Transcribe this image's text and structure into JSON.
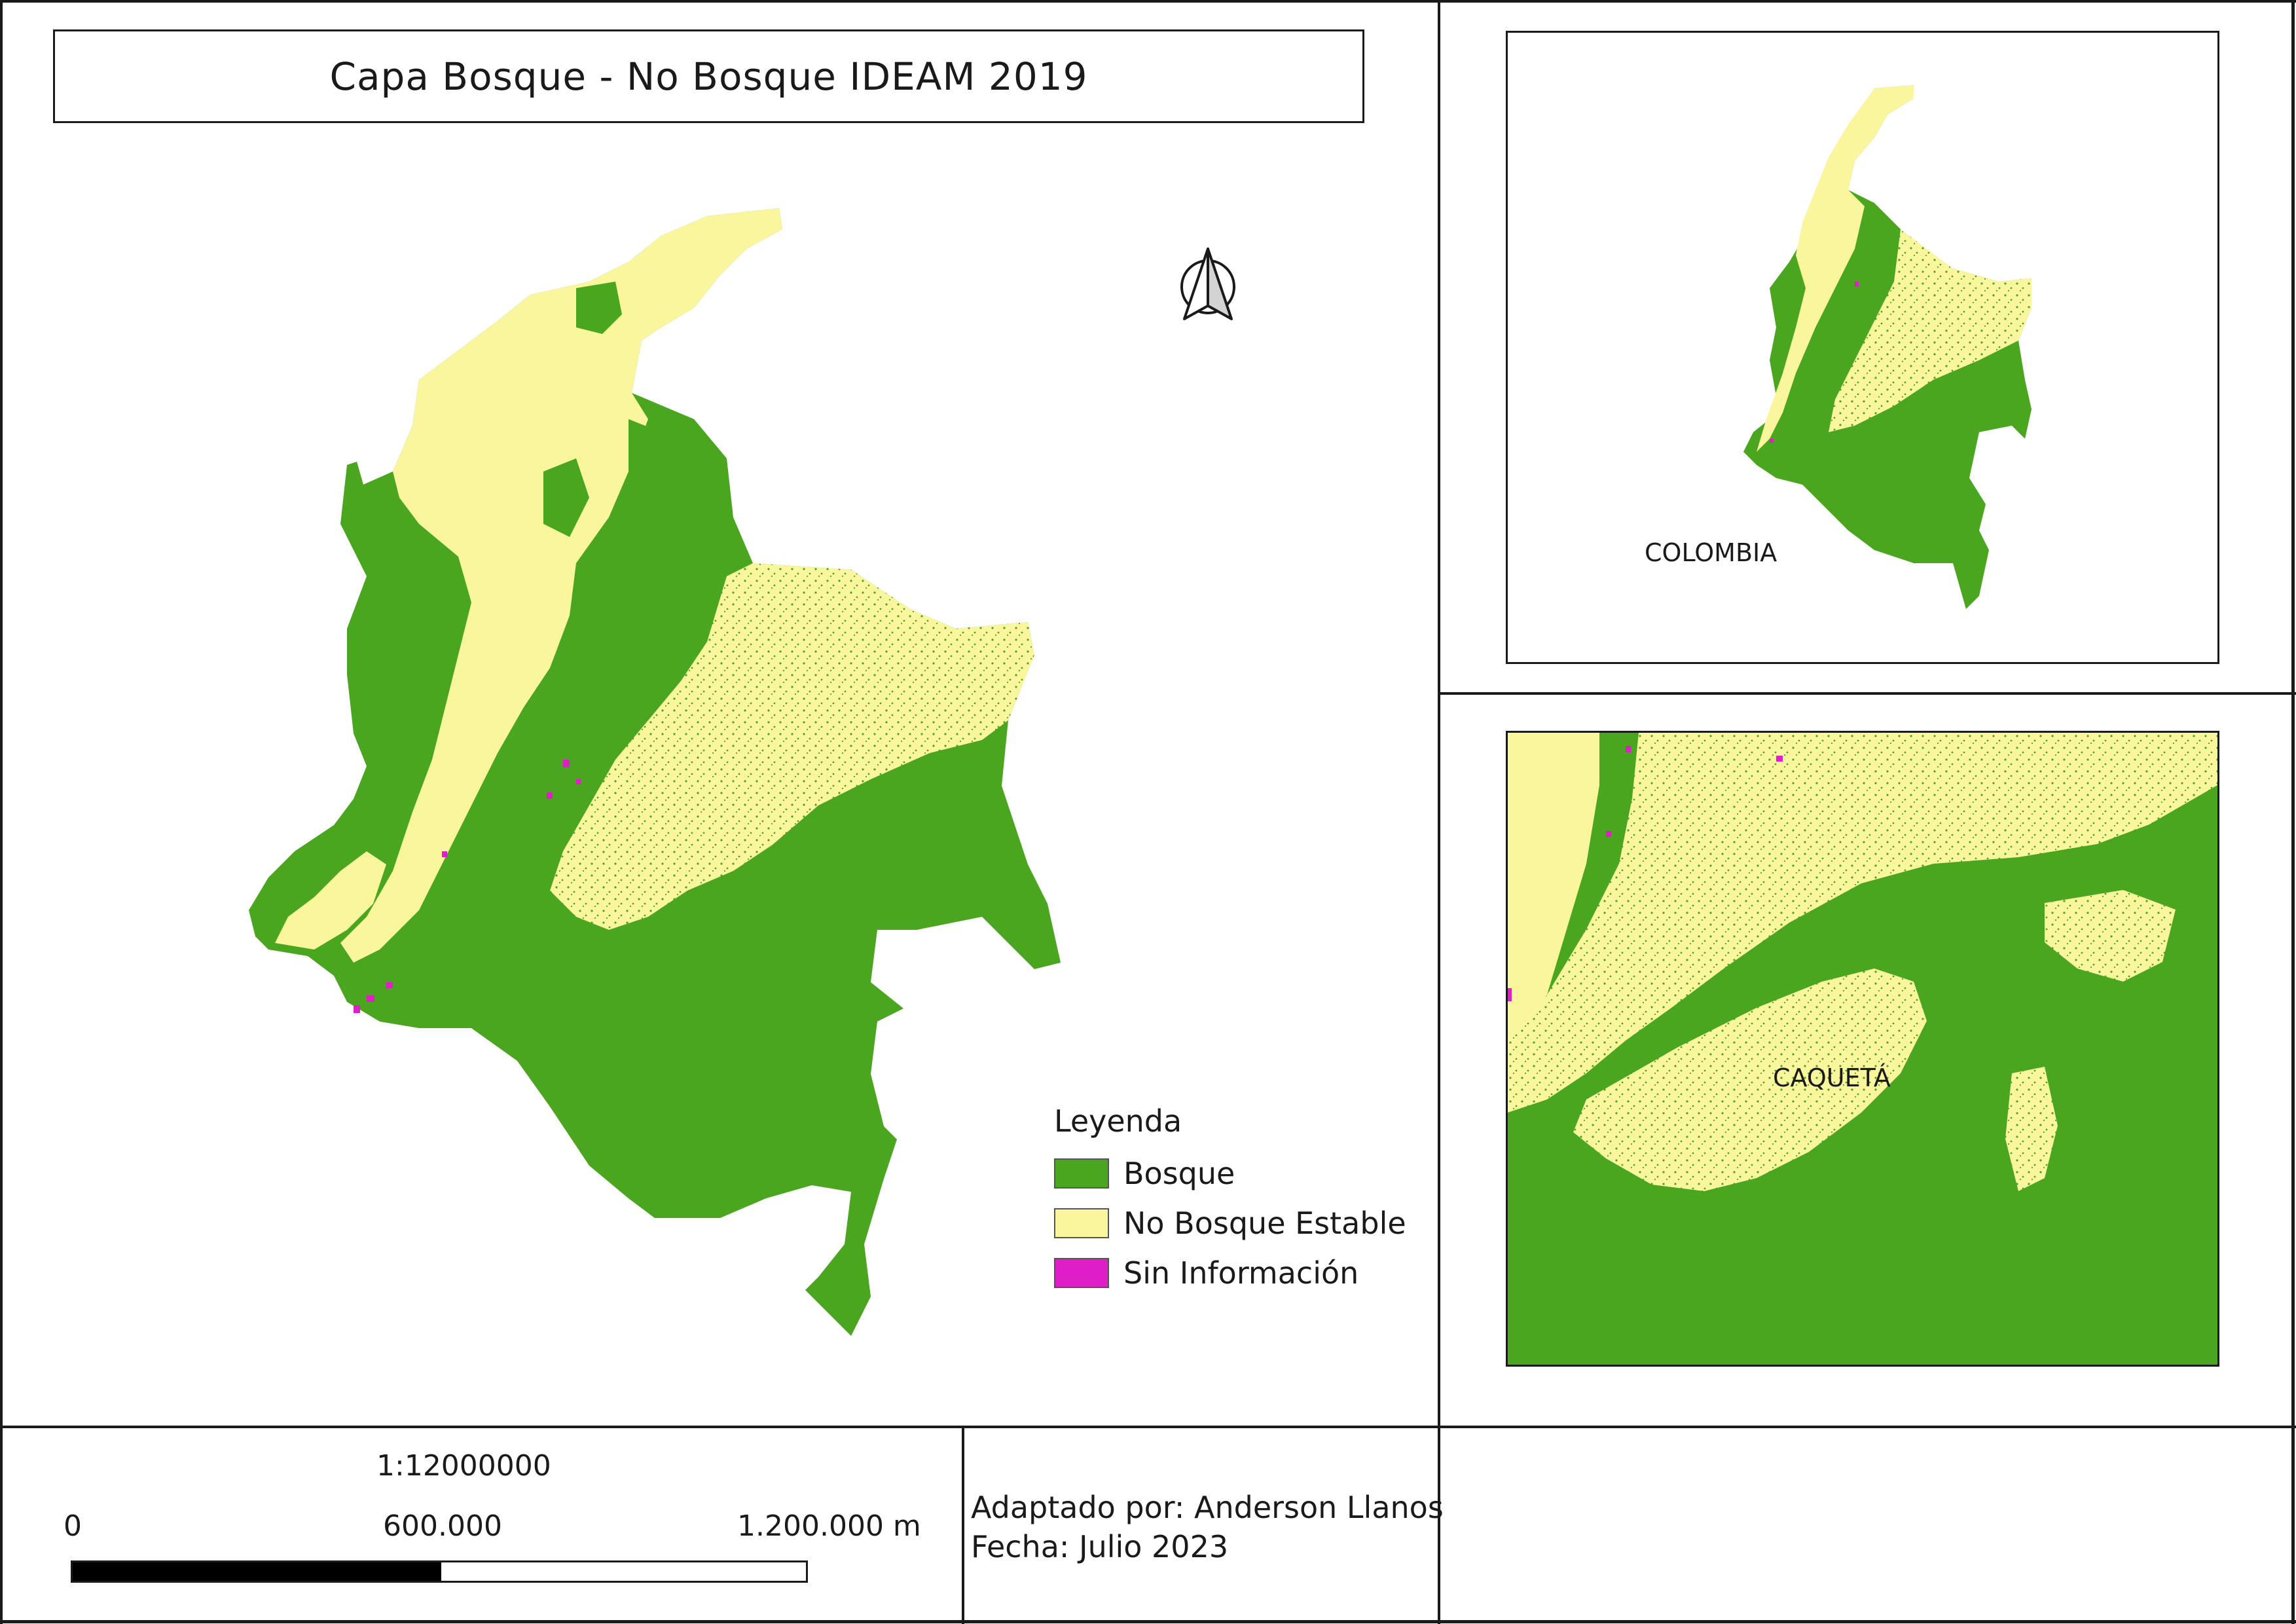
{
  "title": "Capa Bosque - No Bosque IDEAM 2019",
  "colors": {
    "bosque": "#4aa61f",
    "no_bosque": "#faf69e",
    "sin_info": "#e01ec8",
    "frame": "#1a1a1a"
  },
  "map": {
    "north_arrow_icon": "north-arrow-icon"
  },
  "legend": {
    "title": "Leyenda",
    "items": [
      {
        "label": "Bosque",
        "color": "#4aa61f"
      },
      {
        "label": "No Bosque Estable",
        "color": "#faf69e"
      },
      {
        "label": "Sin Información",
        "color": "#e01ec8"
      }
    ]
  },
  "inset_top": {
    "label": "COLOMBIA"
  },
  "inset_bottom": {
    "label": "CAQUETÁ"
  },
  "scale": {
    "ratio": "1:12000000",
    "ticks": [
      "0",
      "600.000",
      "1.200.000 m"
    ]
  },
  "credits": {
    "author": "Adaptado por: Anderson Llanos",
    "date": "Fecha: Julio 2023"
  }
}
